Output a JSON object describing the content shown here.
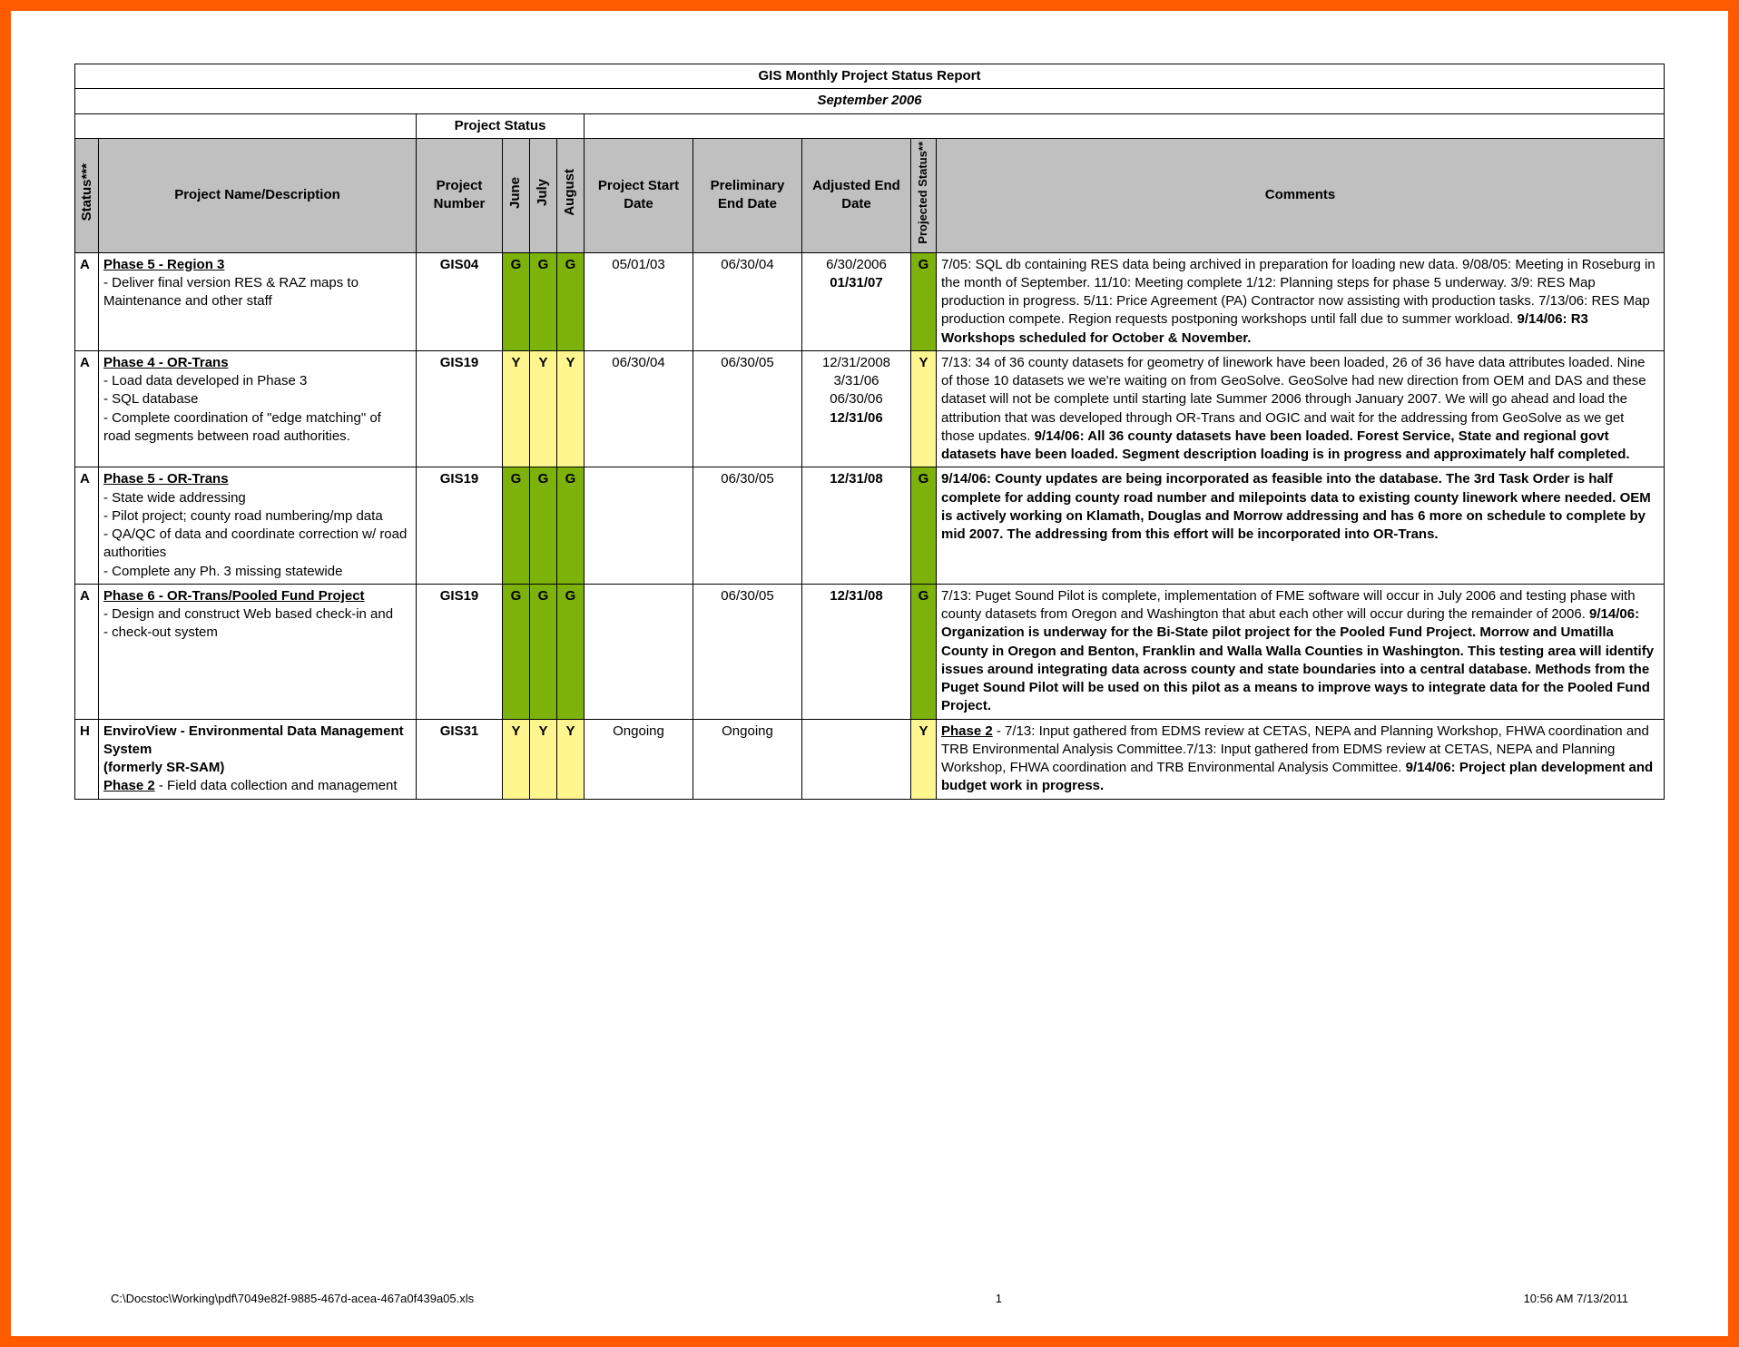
{
  "colors": {
    "frame_border": "#ff5a00",
    "header_bg": "#c0c0c0",
    "green": "#7cb20a",
    "yellow": "#fff68f",
    "grid": "#000000",
    "background": "#ffffff"
  },
  "report": {
    "title": "GIS Monthly Project Status Report",
    "subtitle": "September 2006",
    "section_label": "Project Status",
    "headers": {
      "status": "Status***",
      "name": "Project Name/Description",
      "number": "Project Number",
      "month1": "June",
      "month2": "July",
      "month3": "August",
      "start": "Project Start Date",
      "prelim": "Preliminary End Date",
      "adjusted": "Adjusted End Date",
      "projected": "Projected Status**",
      "comments": "Comments"
    },
    "rows": [
      {
        "status": "A",
        "title": "Phase 5 - Region 3",
        "desc": " - Deliver final version RES & RAZ maps to Maintenance and other staff",
        "number": "GIS04",
        "m1": "G",
        "m1_color": "#7cb20a",
        "m2": "G",
        "m2_color": "#7cb20a",
        "m3": "G",
        "m3_color": "#7cb20a",
        "start": "05/01/03",
        "prelim": "06/30/04",
        "adjusted_html": "6/30/2006<br><b>01/31/07</b>",
        "proj": "G",
        "proj_color": "#7cb20a",
        "comments_html": "7/05: SQL db containing RES data being archived in preparation for loading new data.  9/08/05:  Meeting in Roseburg in the month of September.  11/10: Meeting complete 1/12: Planning steps for phase 5 underway.  3/9: RES Map production in progress. 5/11: Price Agreement (PA) Contractor now assisting with production tasks.  7/13/06: RES Map production compete. Region requests postponing workshops until fall due to summer workload. <b>9/14/06: R3 Workshops scheduled for October & November.</b>"
      },
      {
        "status": "A",
        "title": "Phase 4 - OR-Trans",
        "desc": " - Load data developed in Phase 3<br> - SQL database<br> -  Complete coordination of \"edge matching\" of road segments between road authorities.",
        "number": "GIS19",
        "m1": "Y",
        "m1_color": "#fff68f",
        "m2": "Y",
        "m2_color": "#fff68f",
        "m3": "Y",
        "m3_color": "#fff68f",
        "start": "06/30/04",
        "prelim": "06/30/05",
        "adjusted_html": "12/31/2008<br>3/31/06<br>06/30/06<br><b>12/31/06</b>",
        "proj": "Y",
        "proj_color": "#fff68f",
        "comments_html": "7/13: 34 of 36 county datasets for geometry of linework have been loaded, 26 of 36 have data attributes loaded.  Nine of those 10 datasets we we're waiting on from GeoSolve.  GeoSolve had new direction from OEM and DAS and these dataset will not be complete until starting late Summer 2006 through January 2007.  We will go ahead and load the attribution that was developed through OR-Trans and OGIC and wait for the addressing from GeoSolve as we get those updates. <b>9/14/06: All 36 county datasets have been loaded.  Forest Service, State and regional govt datasets have been loaded.  Segment description loading is in progress and approximately half completed.</b>"
      },
      {
        "status": "A",
        "title": " Phase 5 - OR-Trans",
        "desc": " - State wide addressing<br> - Pilot project; county road numbering/mp data<br> - QA/QC of data and coordinate correction w/ road authorities<br> - Complete any Ph. 3 missing statewide",
        "number": "GIS19",
        "m1": "G",
        "m1_color": "#7cb20a",
        "m2": "G",
        "m2_color": "#7cb20a",
        "m3": "G",
        "m3_color": "#7cb20a",
        "start": "",
        "prelim": "06/30/05",
        "adjusted_html": "<b>12/31/08</b>",
        "proj": "G",
        "proj_color": "#7cb20a",
        "comments_html": "<b>9/14/06: County updates are being incorporated as feasible into the database.  The 3rd Task Order is half complete for adding county road number and milepoints data to existing county linework where needed.  OEM is actively working on Klamath, Douglas and Morrow addressing and has 6 more on schedule to complete by mid 2007.  The addressing from this effort will be incorporated into OR-Trans.</b>"
      },
      {
        "status": "A",
        "title": "Phase 6 - OR-Trans/Pooled Fund Project",
        "desc": " - Design and construct Web based check-in and<br> - check-out system",
        "number": "GIS19",
        "m1": "G",
        "m1_color": "#7cb20a",
        "m2": "G",
        "m2_color": "#7cb20a",
        "m3": "G",
        "m3_color": "#7cb20a",
        "start": "",
        "prelim": "06/30/05",
        "adjusted_html": "<b>12/31/08</b>",
        "proj": "G",
        "proj_color": "#7cb20a",
        "comments_html": "7/13: Puget Sound Pilot is complete, implementation of FME software will occur in July 2006 and  testing phase with county datasets from Oregon and Washington that abut each other will occur during the remainder of 2006. <b>9/14/06:  Organization is underway for the Bi-State pilot project for the Pooled Fund Project.  Morrow and Umatilla County in Oregon and Benton, Franklin and Walla Walla Counties in Washington.  This testing area will identify issues around integrating data across county and state boundaries into a central database.  Methods from the Puget Sound Pilot will be used on this pilot as a means to improve ways to integrate data for the Pooled Fund Project.</b>"
      },
      {
        "status": "H",
        "title_html": "<b>EnviroView - Environmental Data Management System<br>(formerly SR-SAM)</b><br><span class='phase-title'>Phase 2</span> - Field data collection and management",
        "number": "GIS31",
        "m1": "Y",
        "m1_color": "#fff68f",
        "m2": "Y",
        "m2_color": "#fff68f",
        "m3": "Y",
        "m3_color": "#fff68f",
        "start": "Ongoing",
        "prelim": "Ongoing",
        "adjusted_html": "",
        "proj": "Y",
        "proj_color": "#fff68f",
        "comments_html": "<span class='phase-title'>Phase 2</span> - 7/13: Input gathered from EDMS review at CETAS, NEPA and Planning Workshop, FHWA coordination and TRB Environmental Analysis Committee.7/13: Input gathered from EDMS review at CETAS, NEPA and Planning Workshop, FHWA coordination and TRB Environmental Analysis Committee. <b>9/14/06: Project plan development and budget work in progress.</b>"
      }
    ]
  },
  "footer": {
    "path": "C:\\Docstoc\\Working\\pdf\\7049e82f-9885-467d-acea-467a0f439a05.xls",
    "page": "1",
    "timestamp": "10:56 AM    7/13/2011"
  }
}
